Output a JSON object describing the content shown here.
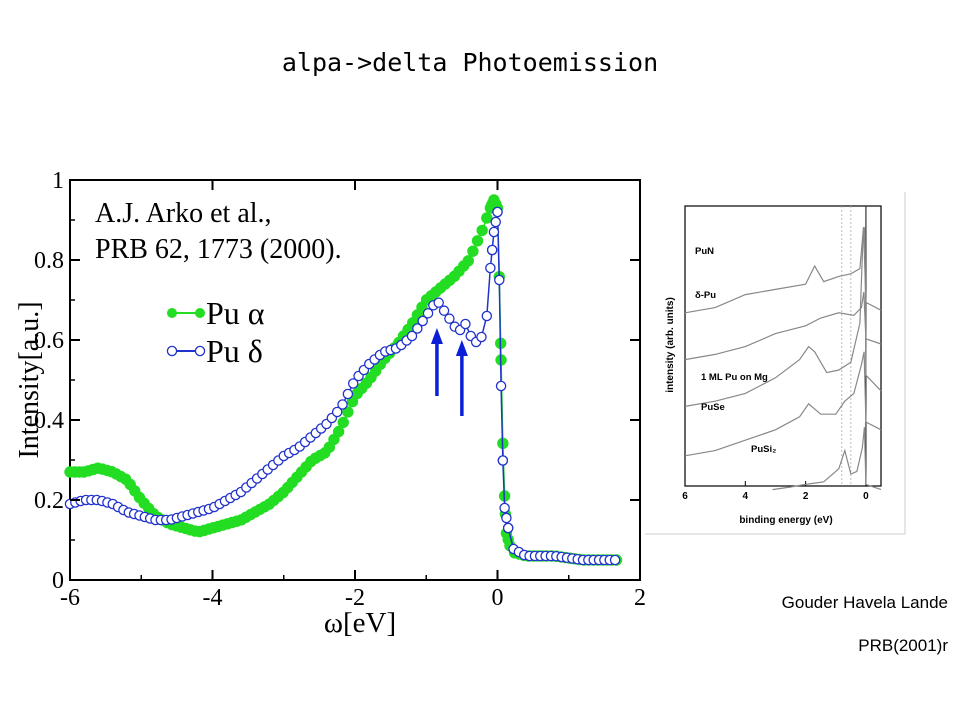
{
  "slide": {
    "title": "alpa->delta  Photoemission",
    "credit_authors": "Gouder Havela Lande",
    "credit_ref": "PRB(2001)r"
  },
  "chart_data": [
    {
      "type": "scatter",
      "annotation_lines": [
        "A.J. Arko et al.,",
        "PRB 62, 1773 (2000)."
      ],
      "xlabel": "ω[eV]",
      "ylabel": "Intensity[a.u.]",
      "xlim": [
        -6,
        2
      ],
      "ylim": [
        0,
        1
      ],
      "xticks": [
        -6,
        -4,
        -2,
        0,
        2
      ],
      "yticks": [
        0,
        0.2,
        0.4,
        0.6,
        0.8,
        1
      ],
      "xtick_labels": [
        "-6",
        "-4",
        "-2",
        "0",
        "2"
      ],
      "ytick_labels": [
        "0",
        "0.2",
        "0.4",
        "0.6",
        "0.8",
        "1"
      ],
      "legend_position": "upper-left",
      "arrows": [
        {
          "x": -0.85,
          "y_from": 0.46,
          "y_to": 0.63
        },
        {
          "x": -0.5,
          "y_from": 0.41,
          "y_to": 0.6
        }
      ],
      "series": [
        {
          "name": "Pu α",
          "color": "#22dd22",
          "marker": "filled",
          "anchors": [
            [
              -6.0,
              0.27
            ],
            [
              -5.8,
              0.27
            ],
            [
              -5.6,
              0.28
            ],
            [
              -5.4,
              0.27
            ],
            [
              -5.2,
              0.25
            ],
            [
              -5.0,
              0.2
            ],
            [
              -4.8,
              0.16
            ],
            [
              -4.6,
              0.14
            ],
            [
              -4.4,
              0.13
            ],
            [
              -4.2,
              0.12
            ],
            [
              -4.0,
              0.13
            ],
            [
              -3.8,
              0.14
            ],
            [
              -3.6,
              0.15
            ],
            [
              -3.4,
              0.17
            ],
            [
              -3.2,
              0.19
            ],
            [
              -3.0,
              0.22
            ],
            [
              -2.8,
              0.26
            ],
            [
              -2.6,
              0.3
            ],
            [
              -2.4,
              0.32
            ],
            [
              -2.2,
              0.38
            ],
            [
              -2.0,
              0.46
            ],
            [
              -1.8,
              0.5
            ],
            [
              -1.6,
              0.55
            ],
            [
              -1.4,
              0.59
            ],
            [
              -1.2,
              0.64
            ],
            [
              -1.0,
              0.7
            ],
            [
              -0.8,
              0.73
            ],
            [
              -0.6,
              0.76
            ],
            [
              -0.4,
              0.8
            ],
            [
              -0.3,
              0.84
            ],
            [
              -0.2,
              0.88
            ],
            [
              -0.1,
              0.93
            ],
            [
              -0.05,
              0.95
            ],
            [
              0.0,
              0.93
            ],
            [
              0.02,
              0.8
            ],
            [
              0.05,
              0.55
            ],
            [
              0.08,
              0.3
            ],
            [
              0.12,
              0.12
            ],
            [
              0.2,
              0.07
            ],
            [
              0.4,
              0.06
            ],
            [
              0.8,
              0.06
            ],
            [
              1.2,
              0.05
            ],
            [
              1.7,
              0.05
            ]
          ],
          "step": 0.065
        },
        {
          "name": "Pu δ",
          "color": "#2233cc",
          "marker": "open",
          "anchors": [
            [
              -6.0,
              0.19
            ],
            [
              -5.8,
              0.2
            ],
            [
              -5.6,
              0.2
            ],
            [
              -5.4,
              0.19
            ],
            [
              -5.2,
              0.17
            ],
            [
              -5.0,
              0.16
            ],
            [
              -4.8,
              0.15
            ],
            [
              -4.6,
              0.15
            ],
            [
              -4.4,
              0.16
            ],
            [
              -4.2,
              0.17
            ],
            [
              -4.0,
              0.18
            ],
            [
              -3.8,
              0.2
            ],
            [
              -3.6,
              0.22
            ],
            [
              -3.4,
              0.25
            ],
            [
              -3.2,
              0.28
            ],
            [
              -3.0,
              0.31
            ],
            [
              -2.8,
              0.33
            ],
            [
              -2.6,
              0.36
            ],
            [
              -2.4,
              0.39
            ],
            [
              -2.2,
              0.43
            ],
            [
              -2.0,
              0.5
            ],
            [
              -1.8,
              0.54
            ],
            [
              -1.6,
              0.57
            ],
            [
              -1.4,
              0.58
            ],
            [
              -1.2,
              0.61
            ],
            [
              -1.0,
              0.66
            ],
            [
              -0.85,
              0.7
            ],
            [
              -0.7,
              0.66
            ],
            [
              -0.55,
              0.62
            ],
            [
              -0.45,
              0.64
            ],
            [
              -0.35,
              0.6
            ],
            [
              -0.25,
              0.59
            ],
            [
              -0.15,
              0.66
            ],
            [
              -0.1,
              0.78
            ],
            [
              -0.05,
              0.87
            ],
            [
              0.0,
              0.92
            ],
            [
              0.02,
              0.8
            ],
            [
              0.04,
              0.6
            ],
            [
              0.06,
              0.37
            ],
            [
              0.1,
              0.18
            ],
            [
              0.2,
              0.08
            ],
            [
              0.4,
              0.06
            ],
            [
              0.8,
              0.06
            ],
            [
              1.2,
              0.05
            ],
            [
              1.7,
              0.05
            ]
          ],
          "step": 0.075
        }
      ]
    },
    {
      "type": "line",
      "xlabel": "binding energy (eV)",
      "ylabel": "intensity (arb. units)",
      "xlim": [
        6,
        -0.5
      ],
      "xticks": [
        6,
        4,
        2,
        0
      ],
      "xtick_labels": [
        "6",
        "4",
        "2",
        "0"
      ],
      "curve_labels": [
        "PuN",
        "δ-Pu",
        "1 ML Pu on Mg",
        "PuSe",
        "PuSi₂"
      ],
      "color": "#888888",
      "vertical_reference_lines": [
        0.8,
        0.5,
        0.0
      ],
      "series": [
        {
          "name": "PuN",
          "anchors": [
            [
              6,
              0.62
            ],
            [
              5,
              0.64
            ],
            [
              4,
              0.69
            ],
            [
              3,
              0.71
            ],
            [
              2,
              0.73
            ],
            [
              1.7,
              0.8
            ],
            [
              1.4,
              0.74
            ],
            [
              0.9,
              0.76
            ],
            [
              0.5,
              0.77
            ],
            [
              0.2,
              0.79
            ],
            [
              0.08,
              0.95
            ],
            [
              0,
              0.66
            ],
            [
              -0.5,
              0.63
            ]
          ]
        },
        {
          "name": "δ-Pu",
          "anchors": [
            [
              6,
              0.44
            ],
            [
              5,
              0.46
            ],
            [
              4,
              0.49
            ],
            [
              3,
              0.54
            ],
            [
              2,
              0.57
            ],
            [
              1.5,
              0.6
            ],
            [
              0.9,
              0.62
            ],
            [
              0.4,
              0.61
            ],
            [
              0.15,
              0.64
            ],
            [
              0.07,
              0.7
            ],
            [
              0,
              0.52
            ],
            [
              -0.5,
              0.5
            ]
          ]
        },
        {
          "name": "1 ML Pu on Mg",
          "anchors": [
            [
              6,
              0.26
            ],
            [
              5,
              0.28
            ],
            [
              4,
              0.31
            ],
            [
              3,
              0.37
            ],
            [
              2.2,
              0.44
            ],
            [
              1.9,
              0.49
            ],
            [
              1.7,
              0.47
            ],
            [
              1.3,
              0.39
            ],
            [
              0.9,
              0.4
            ],
            [
              0.5,
              0.43
            ],
            [
              0.2,
              0.58
            ],
            [
              0.1,
              0.9
            ],
            [
              0.03,
              0.95
            ],
            [
              0,
              0.38
            ],
            [
              -0.5,
              0.32
            ]
          ]
        },
        {
          "name": "PuSe",
          "anchors": [
            [
              6,
              0.07
            ],
            [
              5,
              0.09
            ],
            [
              4,
              0.13
            ],
            [
              3,
              0.17
            ],
            [
              2.2,
              0.22
            ],
            [
              1.9,
              0.27
            ],
            [
              1.5,
              0.23
            ],
            [
              1.0,
              0.23
            ],
            [
              0.7,
              0.28
            ],
            [
              0.4,
              0.31
            ],
            [
              0.15,
              0.42
            ],
            [
              0.06,
              0.47
            ],
            [
              0,
              0.2
            ],
            [
              -0.5,
              0.17
            ]
          ]
        },
        {
          "name": "PuSi₂",
          "anchors": [
            [
              3.1,
              -0.06
            ],
            [
              2.5,
              -0.05
            ],
            [
              2.0,
              -0.04
            ],
            [
              1.4,
              -0.03
            ],
            [
              0.9,
              0.02
            ],
            [
              0.7,
              0.09
            ],
            [
              0.5,
              0.0
            ],
            [
              0.3,
              0.01
            ],
            [
              0.12,
              0.1
            ],
            [
              0.05,
              0.18
            ],
            [
              0,
              -0.04
            ],
            [
              -0.5,
              -0.06
            ]
          ]
        }
      ]
    }
  ]
}
